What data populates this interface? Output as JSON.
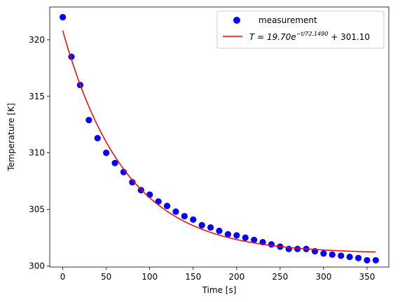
{
  "chart_data": {
    "type": "scatter",
    "xlabel": "Time [s]",
    "ylabel": "Temperature [K]",
    "xlim": [
      -15,
      375
    ],
    "ylim": [
      299.9,
      322.9
    ],
    "xticks": [
      0,
      50,
      100,
      150,
      200,
      250,
      300,
      350
    ],
    "yticks": [
      300,
      305,
      310,
      315,
      320
    ],
    "grid": false,
    "legend_position": "top-right",
    "series": [
      {
        "name": "measurement",
        "kind": "scatter",
        "color": "#0000ff",
        "x": [
          0,
          10,
          20,
          30,
          40,
          50,
          60,
          70,
          80,
          90,
          100,
          110,
          120,
          130,
          140,
          150,
          160,
          170,
          180,
          190,
          200,
          210,
          220,
          230,
          240,
          250,
          260,
          270,
          280,
          290,
          300,
          310,
          320,
          330,
          340,
          350,
          360
        ],
        "y": [
          322.0,
          318.5,
          316.0,
          312.9,
          311.3,
          310.0,
          309.1,
          308.3,
          307.4,
          306.7,
          306.3,
          305.7,
          305.3,
          304.8,
          304.4,
          304.1,
          303.6,
          303.4,
          303.1,
          302.8,
          302.7,
          302.5,
          302.3,
          302.1,
          301.9,
          301.7,
          301.5,
          301.5,
          301.5,
          301.3,
          301.1,
          301.0,
          300.9,
          300.8,
          300.7,
          300.5,
          300.5
        ]
      },
      {
        "name": "$T = 19.70e^{-t/72.1490} + 301.10$",
        "kind": "line",
        "color": "#ff0000",
        "amplitude": 19.7,
        "tau": 72.149,
        "offset": 301.1,
        "t_range": [
          0,
          360
        ]
      }
    ],
    "legend": {
      "measurement_label": "measurement",
      "fit_label_prefix": "T = 19.70e",
      "fit_label_exponent": "−t/72.1490",
      "fit_label_suffix": " + 301.10"
    }
  }
}
